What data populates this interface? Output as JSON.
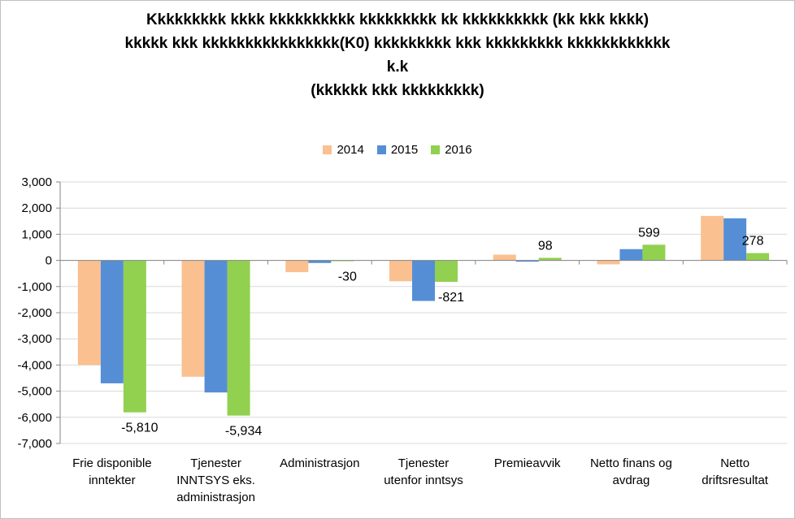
{
  "title_lines": [
    "Kkkkkkkkk kkkk kkkkkkkkkk kkkkkkkkk kk kkkkkkkkkk (kk kkk kkkk)",
    "kkkkk kkk kkkkkkkkkkkkkkkk(K0) kkkkkkkkk kkk kkkkkkkkk kkkkkkkkkkkk",
    "k.k",
    "(kkkkkk kkk kkkkkkkkk)"
  ],
  "colors": {
    "2014": "#fac090",
    "2015": "#558ed5",
    "2016": "#92d050"
  },
  "chart_data": {
    "type": "bar",
    "title": "Kkkkkkkkk kkkk kkkkkkkkkk kkkkkkkkk kk kkkkkkkkkk (kk kkk kkkk) kkkkk kkk kkkkkkkkkkkkkkkk(K0) kkkkkkkkk kkk kkkkkkkkk kkkkkkkkkkkk k.k (kkkkkk kkk kkkkkkkkk)",
    "categories": [
      [
        "Frie disponible",
        "inntekter"
      ],
      [
        "Tjenester",
        "INNTSYS eks.",
        "administrasjon"
      ],
      [
        "Administrasjon"
      ],
      [
        "Tjenester",
        "utenfor inntsys"
      ],
      [
        "Premieavvik"
      ],
      [
        "Netto finans og",
        "avdrag"
      ],
      [
        "Netto",
        "driftsresultat"
      ]
    ],
    "series": [
      {
        "name": "2014",
        "values": [
          -4000,
          -4450,
          -450,
          -800,
          220,
          -150,
          1700
        ]
      },
      {
        "name": "2015",
        "values": [
          -4700,
          -5050,
          -100,
          -1550,
          -50,
          430,
          1610
        ]
      },
      {
        "name": "2016",
        "values": [
          -5810,
          -5934,
          -30,
          -821,
          98,
          599,
          278
        ]
      }
    ],
    "data_labels": [
      "-5,810",
      "-5,934",
      "-30",
      "-821",
      "98",
      "599",
      "278"
    ],
    "ylim": [
      -7000,
      3000
    ],
    "yticks": [
      "3,000",
      "2,000",
      "1,000",
      "0",
      "-1,000",
      "-2,000",
      "-3,000",
      "-4,000",
      "-5,000",
      "-6,000",
      "-7,000"
    ],
    "xlabel": "",
    "ylabel": "",
    "legend_position": "top"
  }
}
